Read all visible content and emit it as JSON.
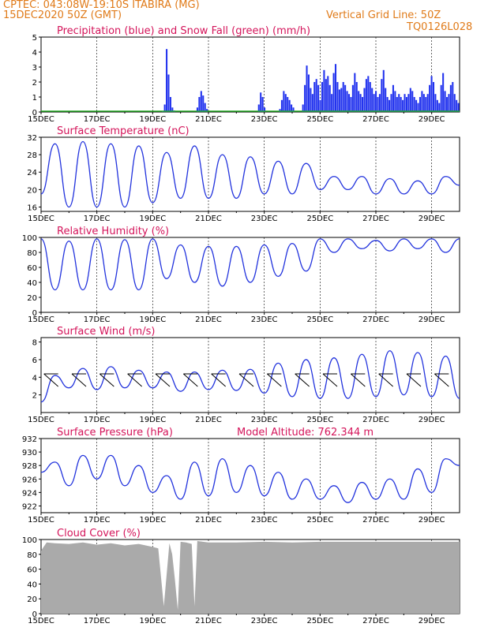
{
  "header": {
    "location": "CPTEC:   043:08W-19:10S   ITABIRA (MG)",
    "run": "15DEC2020 50Z (GMT)",
    "grid_line": "Vertical Grid Line: 50Z",
    "model": "TQ0126L028"
  },
  "colors": {
    "line": "#2233dd",
    "precip": "#2233ee",
    "snow": "#22aa22",
    "cloud": "#aaaaaa",
    "title": "#d4145a",
    "header": "#e07b1a"
  },
  "chart_data": [
    {
      "type": "bar",
      "title": "Precipitation (blue) and Snow Fall (green) (mm/h)",
      "x_ticks": [
        "15DEC",
        "17DEC",
        "19DEC",
        "21DEC",
        "23DEC",
        "25DEC",
        "27DEC",
        "29DEC"
      ],
      "ylim": [
        0,
        5
      ],
      "y_ticks": [
        0,
        1,
        2,
        3,
        4,
        5
      ],
      "hourly_step": 2,
      "values": [
        0,
        0,
        0,
        0,
        0,
        0,
        0,
        0,
        0,
        0,
        0,
        0,
        0,
        0,
        0,
        0,
        0,
        0,
        0,
        0,
        0,
        0,
        0,
        0,
        0,
        0,
        0,
        0,
        0,
        0,
        0,
        0,
        0,
        0,
        0,
        0,
        0,
        0,
        0,
        0,
        0,
        0,
        0,
        0,
        0,
        0,
        0,
        0,
        0,
        0,
        0,
        0,
        0,
        0,
        0,
        0,
        0,
        0,
        0,
        0,
        0,
        0,
        0,
        0.05,
        0.5,
        4.2,
        2.5,
        1.0,
        0.3,
        0.1,
        0,
        0,
        0,
        0,
        0,
        0,
        0,
        0,
        0,
        0,
        0,
        0.3,
        1.0,
        1.4,
        1.1,
        0.6,
        0.2,
        0,
        0,
        0,
        0,
        0,
        0,
        0,
        0,
        0,
        0,
        0,
        0,
        0,
        0,
        0,
        0,
        0,
        0,
        0,
        0,
        0,
        0,
        0,
        0,
        0,
        0,
        0.5,
        1.3,
        1.0,
        0.3,
        0,
        0,
        0,
        0,
        0,
        0,
        0,
        0.2,
        0.8,
        1.4,
        1.2,
        1.0,
        0.8,
        0.5,
        0.3,
        0,
        0,
        0,
        0,
        0.5,
        1.8,
        3.1,
        2.5,
        1.6,
        1.2,
        2.0,
        2.2,
        1.8,
        0.8,
        2.0,
        2.8,
        2.2,
        2.4,
        1.8,
        1.2,
        2.6,
        3.2,
        2.0,
        1.5,
        1.6,
        2.0,
        1.8,
        1.4,
        1.2,
        1.0,
        1.8,
        2.6,
        2.0,
        1.4,
        1.2,
        1.0,
        1.6,
        2.2,
        2.4,
        2.0,
        1.6,
        1.2,
        1.4,
        1.0,
        1.2,
        2.2,
        2.8,
        1.6,
        1.0,
        0.8,
        1.2,
        1.8,
        1.4,
        1.0,
        1.2,
        1.0,
        0.8,
        1.2,
        1.0,
        1.2,
        1.6,
        1.4,
        1.0,
        0.8,
        0.6,
        1.0,
        1.4,
        1.2,
        1.0,
        1.2,
        1.8,
        2.4,
        2.0,
        1.2,
        0.8,
        0.6,
        1.8,
        2.6,
        1.4,
        1.0,
        1.2,
        1.8,
        2.0,
        1.2,
        0.8,
        0.6
      ]
    },
    {
      "type": "line",
      "title": "Surface Temperature (nC)",
      "x_ticks": [
        "15DEC",
        "17DEC",
        "19DEC",
        "21DEC",
        "23DEC",
        "25DEC",
        "27DEC",
        "29DEC"
      ],
      "ylim": [
        15,
        32
      ],
      "y_ticks": [
        16,
        20,
        24,
        28,
        32
      ],
      "x_days": [
        0,
        0.5,
        1,
        1.5,
        2,
        2.5,
        3,
        3.5,
        4,
        4.5,
        5,
        5.5,
        6,
        6.5,
        7,
        7.5,
        8,
        8.5,
        9,
        9.5,
        10,
        10.5,
        11,
        11.5,
        12,
        12.5,
        13,
        13.5,
        14,
        14.5,
        15
      ],
      "values": [
        19,
        30.5,
        16,
        31,
        16,
        30.5,
        16,
        30,
        17,
        28.5,
        18,
        30,
        18,
        28,
        18,
        27.5,
        19,
        26.5,
        19,
        26,
        20,
        23,
        20,
        23,
        19,
        22.5,
        19,
        22,
        19,
        23,
        21
      ]
    },
    {
      "type": "line",
      "title": "Relative Humidity (%)",
      "x_ticks": [
        "15DEC",
        "17DEC",
        "19DEC",
        "21DEC",
        "23DEC",
        "25DEC",
        "27DEC",
        "29DEC"
      ],
      "ylim": [
        0,
        100
      ],
      "y_ticks": [
        0,
        20,
        40,
        60,
        80,
        100
      ],
      "x_days": [
        0,
        0.5,
        1,
        1.5,
        2,
        2.5,
        3,
        3.5,
        4,
        4.5,
        5,
        5.5,
        6,
        6.5,
        7,
        7.5,
        8,
        8.5,
        9,
        9.5,
        10,
        10.5,
        11,
        11.5,
        12,
        12.5,
        13,
        13.5,
        14,
        14.5,
        15
      ],
      "values": [
        98,
        30,
        95,
        30,
        98,
        30,
        97,
        30,
        98,
        45,
        90,
        40,
        88,
        35,
        88,
        40,
        90,
        48,
        92,
        55,
        98,
        80,
        98,
        85,
        96,
        82,
        98,
        85,
        98,
        80,
        98
      ]
    },
    {
      "type": "line",
      "title": "Surface Wind (m/s)",
      "x_ticks": [
        "15DEC",
        "17DEC",
        "19DEC",
        "21DEC",
        "23DEC",
        "25DEC",
        "27DEC",
        "29DEC"
      ],
      "ylim": [
        0,
        8.5
      ],
      "y_ticks": [
        2,
        4,
        6,
        8
      ],
      "x_days": [
        0,
        0.5,
        1,
        1.5,
        2,
        2.5,
        3,
        3.5,
        4,
        4.5,
        5,
        5.5,
        6,
        6.5,
        7,
        7.5,
        8,
        8.5,
        9,
        9.5,
        10,
        10.5,
        11,
        11.5,
        12,
        12.5,
        13,
        13.5,
        14,
        14.5,
        15
      ],
      "values": [
        1.2,
        4.2,
        2.8,
        5.0,
        2.6,
        5.2,
        2.8,
        4.8,
        2.8,
        4.6,
        2.4,
        4.6,
        2.6,
        4.8,
        2.5,
        4.9,
        2.2,
        5.6,
        1.8,
        6.0,
        1.6,
        6.2,
        1.6,
        6.6,
        1.8,
        7.0,
        2.0,
        6.8,
        1.8,
        6.4,
        1.6
      ]
    },
    {
      "type": "line",
      "title": "Surface Pressure (hPa)",
      "annotation": "Model Altitude: 762.344 m",
      "x_ticks": [
        "15DEC",
        "17DEC",
        "19DEC",
        "21DEC",
        "23DEC",
        "25DEC",
        "27DEC",
        "29DEC"
      ],
      "ylim": [
        921,
        932
      ],
      "y_ticks": [
        922,
        924,
        926,
        928,
        930,
        932
      ],
      "x_days": [
        0,
        0.5,
        1,
        1.5,
        2,
        2.5,
        3,
        3.5,
        4,
        4.5,
        5,
        5.5,
        6,
        6.5,
        7,
        7.5,
        8,
        8.5,
        9,
        9.5,
        10,
        10.5,
        11,
        11.5,
        12,
        12.5,
        13,
        13.5,
        14,
        14.5,
        15
      ],
      "values": [
        927,
        928.5,
        925,
        929.5,
        926,
        929.5,
        925,
        928,
        924,
        926.5,
        923,
        928.5,
        923.5,
        929,
        924,
        928,
        923.5,
        927,
        923,
        926,
        923,
        925,
        922.5,
        925.5,
        923,
        926,
        923,
        927.5,
        924,
        929,
        928
      ]
    },
    {
      "type": "area",
      "title": "Cloud Cover (%)",
      "x_ticks": [
        "15DEC",
        "17DEC",
        "19DEC",
        "21DEC",
        "23DEC",
        "25DEC",
        "27DEC",
        "29DEC"
      ],
      "ylim": [
        0,
        100
      ],
      "y_ticks": [
        0,
        20,
        40,
        60,
        80,
        100
      ],
      "x_days": [
        0,
        0.2,
        0.5,
        1,
        1.5,
        2,
        2.5,
        3,
        3.5,
        4,
        4.2,
        4.4,
        4.6,
        4.7,
        4.8,
        4.9,
        5.0,
        5.2,
        5.4,
        5.5,
        5.6,
        5.8,
        6,
        7,
        8,
        9,
        10,
        11,
        12,
        13,
        14,
        15
      ],
      "values": [
        85,
        96,
        95,
        94,
        96,
        93,
        95,
        92,
        94,
        90,
        88,
        10,
        95,
        80,
        45,
        5,
        97,
        96,
        94,
        10,
        98,
        97,
        96,
        96,
        97,
        96,
        97,
        97,
        97,
        97,
        97,
        97
      ]
    }
  ]
}
